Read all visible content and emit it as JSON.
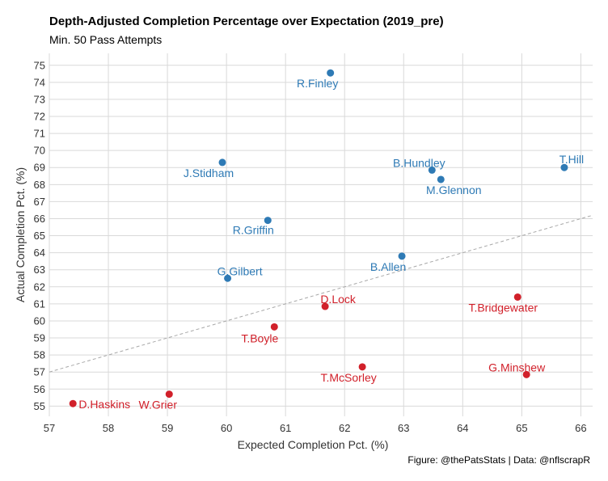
{
  "title": "Depth-Adjusted Completion Percentage over Expectation (2019_pre)",
  "subtitle": "Min. 50 Pass Attempts",
  "caption": "Figure: @thePatsStats | Data: @nflscrapR",
  "colors": {
    "above": "#2e7ab5",
    "below": "#d1202a",
    "grid": "#d9d9d9",
    "reference": "#a8a8a8"
  },
  "chart_data": {
    "type": "scatter",
    "xlabel": "Expected Completion Pct. (%)",
    "ylabel": "Actual Completion Pct. (%)",
    "xlim": [
      57,
      66.2
    ],
    "ylim": [
      54.4,
      75.7
    ],
    "xticks": [
      57,
      58,
      59,
      60,
      61,
      62,
      63,
      64,
      65,
      66
    ],
    "yticks": [
      55,
      56,
      57,
      58,
      59,
      60,
      61,
      62,
      63,
      64,
      65,
      66,
      67,
      68,
      69,
      70,
      71,
      72,
      73,
      74,
      75
    ],
    "grid": true,
    "reference_line": "y = x",
    "points": [
      {
        "label": "R.Finley",
        "x": 61.76,
        "y": 74.55,
        "group": "above"
      },
      {
        "label": "J.Stidham",
        "x": 59.93,
        "y": 69.3,
        "group": "above"
      },
      {
        "label": "B.Hundley",
        "x": 63.48,
        "y": 68.85,
        "group": "above"
      },
      {
        "label": "M.Glennon",
        "x": 63.63,
        "y": 68.3,
        "group": "above"
      },
      {
        "label": "T.Hill",
        "x": 65.72,
        "y": 69.0,
        "group": "above"
      },
      {
        "label": "R.Griffin",
        "x": 60.7,
        "y": 65.9,
        "group": "above"
      },
      {
        "label": "B.Allen",
        "x": 62.97,
        "y": 63.8,
        "group": "above"
      },
      {
        "label": "G.Gilbert",
        "x": 60.02,
        "y": 62.5,
        "group": "above"
      },
      {
        "label": "D.Lock",
        "x": 61.67,
        "y": 60.85,
        "group": "below"
      },
      {
        "label": "T.Boyle",
        "x": 60.81,
        "y": 59.65,
        "group": "below"
      },
      {
        "label": "T.Bridgewater",
        "x": 64.93,
        "y": 61.4,
        "group": "below"
      },
      {
        "label": "T.McSorley",
        "x": 62.3,
        "y": 57.3,
        "group": "below"
      },
      {
        "label": "G.Minshew",
        "x": 65.08,
        "y": 56.85,
        "group": "below"
      },
      {
        "label": "D.Haskins",
        "x": 57.4,
        "y": 55.15,
        "group": "below"
      },
      {
        "label": "W.Grier",
        "x": 59.03,
        "y": 55.7,
        "group": "below"
      }
    ]
  }
}
